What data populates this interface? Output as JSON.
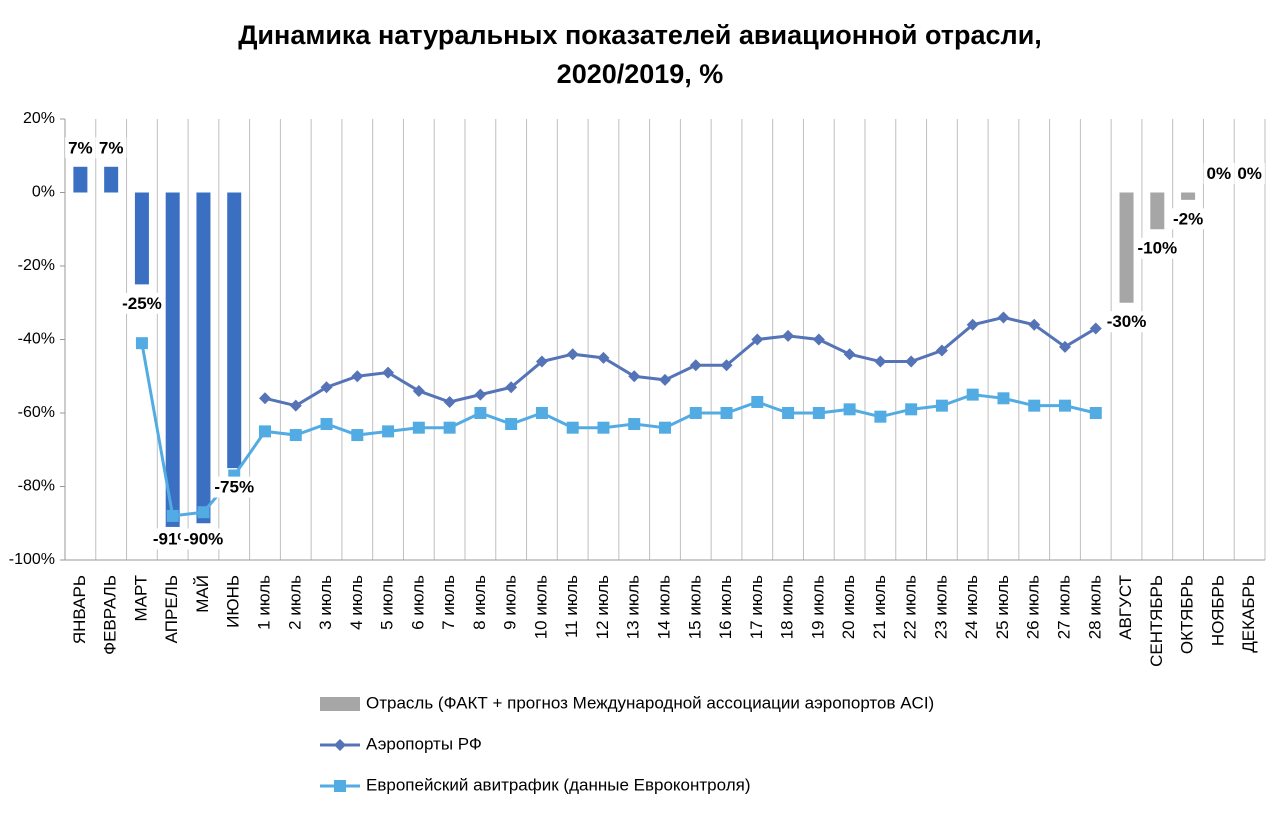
{
  "chart_data": {
    "type": "bar_line",
    "title": [
      "Динамика натуральных показателей авиационной отрасли,",
      "2020/2019, %"
    ],
    "categories": [
      "ЯНВАРЬ",
      "ФЕВРАЛЬ",
      "МАРТ",
      "АПРЕЛЬ",
      "МАЙ",
      "ИЮНЬ",
      "1 июль",
      "2 июль",
      "3 июль",
      "4 июль",
      "5 июль",
      "6 июль",
      "7 июль",
      "8 июль",
      "9 июль",
      "10 июль",
      "11 июль",
      "12 июль",
      "13 июль",
      "14 июль",
      "15 июль",
      "16 июль",
      "17 июль",
      "18 июль",
      "19 июль",
      "20 июль",
      "21 июль",
      "22 июль",
      "23 июль",
      "24 июль",
      "25 июль",
      "26 июль",
      "27 июль",
      "28 июль",
      "АВГУСТ",
      "СЕНТЯБРЬ",
      "ОКТЯБРЬ",
      "НОЯБРЬ",
      "ДЕКАБРЬ"
    ],
    "series": [
      {
        "name": "Отрасль (ФАКТ + прогноз Международной ассоциации аэропортов ACI)",
        "kind": "bar",
        "color": "#a6a6a6",
        "colors": [
          "#3a6fc2",
          "#3a6fc2",
          "#3a6fc2",
          "#3a6fc2",
          "#3a6fc2",
          "#3a6fc2",
          null,
          null,
          null,
          null,
          null,
          null,
          null,
          null,
          null,
          null,
          null,
          null,
          null,
          null,
          null,
          null,
          null,
          null,
          null,
          null,
          null,
          null,
          null,
          null,
          null,
          null,
          null,
          null,
          "#a6a6a6",
          "#a6a6a6",
          "#a6a6a6",
          "#a6a6a6",
          "#a6a6a6"
        ],
        "values": [
          7,
          7,
          -25,
          -91,
          -90,
          -75,
          null,
          null,
          null,
          null,
          null,
          null,
          null,
          null,
          null,
          null,
          null,
          null,
          null,
          null,
          null,
          null,
          null,
          null,
          null,
          null,
          null,
          null,
          null,
          null,
          null,
          null,
          null,
          null,
          -30,
          -10,
          -2,
          0,
          0
        ],
        "value_labels": [
          "7%",
          "7%",
          "-25%",
          "-91%",
          "-90%",
          "-75%",
          null,
          null,
          null,
          null,
          null,
          null,
          null,
          null,
          null,
          null,
          null,
          null,
          null,
          null,
          null,
          null,
          null,
          null,
          null,
          null,
          null,
          null,
          null,
          null,
          null,
          null,
          null,
          null,
          "-30%",
          "-10%",
          "-2%",
          "0%",
          "0%"
        ]
      },
      {
        "name": "Аэропорты РФ",
        "kind": "line",
        "marker": "diamond",
        "color": "#5574b8",
        "values": [
          null,
          null,
          null,
          null,
          null,
          null,
          -56,
          -58,
          -53,
          -50,
          -49,
          -54,
          -57,
          -55,
          -53,
          -46,
          -44,
          -45,
          -50,
          -51,
          -47,
          -47,
          -40,
          -39,
          -40,
          -44,
          -46,
          -46,
          -43,
          -36,
          -34,
          -36,
          -42,
          -37,
          null,
          null,
          null,
          null,
          null
        ]
      },
      {
        "name": "Европейский авитрафик (данные Евроконтроля)",
        "kind": "line",
        "marker": "square",
        "color": "#52ace3",
        "values": [
          null,
          null,
          -41,
          -88,
          -87,
          -77,
          -65,
          -66,
          -63,
          -66,
          -65,
          -64,
          -64,
          -60,
          -63,
          -60,
          -64,
          -64,
          -63,
          -64,
          -60,
          -60,
          -57,
          -60,
          -60,
          -59,
          -61,
          -59,
          -58,
          -55,
          -56,
          -58,
          -58,
          -60,
          null,
          null,
          null,
          null,
          null
        ]
      }
    ],
    "ylim": [
      -100,
      20
    ],
    "yticks": [
      {
        "value": 20,
        "label": "20%"
      },
      {
        "value": 0,
        "label": "0%"
      },
      {
        "value": -20,
        "label": "-20%"
      },
      {
        "value": -40,
        "label": "-40%"
      },
      {
        "value": -60,
        "label": "-60%"
      },
      {
        "value": -80,
        "label": "-80%"
      },
      {
        "value": -100,
        "label": "-100%"
      }
    ],
    "legend": "bottom"
  }
}
